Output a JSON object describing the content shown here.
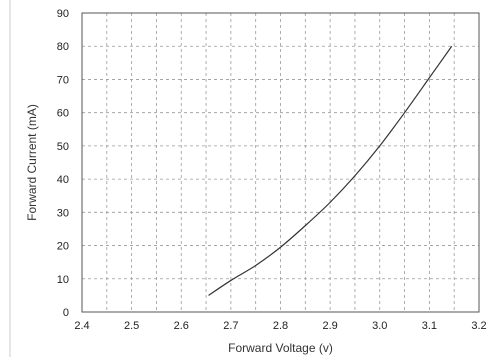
{
  "chart_data": {
    "type": "line",
    "title": "",
    "xlabel": "Forward Voltage (v)",
    "ylabel": "Forward Current (mA)",
    "xlim": [
      2.4,
      3.2
    ],
    "ylim": [
      0,
      90
    ],
    "x_ticks": [
      "2.4",
      "2.5",
      "2.6",
      "2.7",
      "2.8",
      "2.9",
      "3.0",
      "3.1",
      "3.2"
    ],
    "y_ticks": [
      "0",
      "10",
      "20",
      "30",
      "40",
      "50",
      "60",
      "70",
      "80",
      "90"
    ],
    "x_minor_step": 0.05,
    "grid": true,
    "legend": "none",
    "series": [
      {
        "color": "#333333",
        "x": [
          2.655,
          2.7,
          2.75,
          2.8,
          2.85,
          2.9,
          2.95,
          3.0,
          3.05,
          3.1,
          3.145
        ],
        "y": [
          5,
          9.5,
          14,
          19.5,
          26,
          33,
          41,
          50,
          60,
          70.5,
          80
        ]
      }
    ]
  }
}
